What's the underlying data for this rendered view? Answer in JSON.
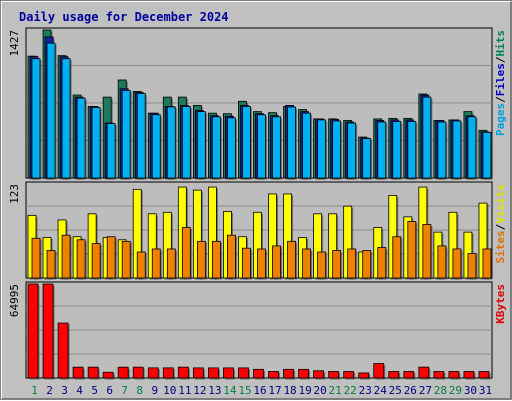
{
  "chart_data": {
    "type": "bar",
    "title": "Daily usage for December 2024",
    "categories": [
      "1",
      "2",
      "3",
      "4",
      "5",
      "6",
      "7",
      "8",
      "9",
      "10",
      "11",
      "12",
      "13",
      "14",
      "15",
      "16",
      "17",
      "18",
      "19",
      "20",
      "21",
      "22",
      "23",
      "24",
      "25",
      "26",
      "27",
      "28",
      "29",
      "30",
      "31"
    ],
    "weekend_days": [
      "1",
      "7",
      "8",
      "14",
      "15",
      "21",
      "22",
      "28",
      "29"
    ],
    "panels": [
      {
        "name": "top",
        "y_axis_max_label": "1427",
        "ylim": [
          0,
          1427
        ],
        "grid": true,
        "legend_right": [
          {
            "text": "Pages",
            "color": "#00a0e0"
          },
          {
            "text": "/",
            "color": "#000000"
          },
          {
            "text": "Files",
            "color": "#0000c0"
          },
          {
            "text": "/",
            "color": "#000000"
          },
          {
            "text": "Hits",
            "color": "#00805c"
          }
        ],
        "series": [
          {
            "name": "Hits",
            "color": "#1a7a5a",
            "values": [
              1175,
              1427,
              1180,
              800,
              690,
              780,
              945,
              835,
              625,
              780,
              780,
              700,
              625,
              620,
              740,
              640,
              630,
              690,
              660,
              570,
              570,
              555,
              395,
              570,
              575,
              575,
              810,
              555,
              560,
              640,
              460
            ]
          },
          {
            "name": "Files",
            "color": "#1820a0",
            "values": [
              1170,
              1360,
              1170,
              780,
              690,
              530,
              860,
              825,
              625,
              690,
              700,
              650,
              600,
              595,
              700,
              620,
              600,
              700,
              640,
              570,
              565,
              540,
              385,
              555,
              560,
              560,
              800,
              555,
              560,
              600,
              445
            ]
          },
          {
            "name": "Pages",
            "color": "#00b0f0",
            "values": [
              1150,
              1300,
              1150,
              770,
              680,
              525,
              845,
              815,
              610,
              685,
              690,
              640,
              590,
              580,
              690,
              610,
              590,
              685,
              625,
              560,
              550,
              530,
              380,
              540,
              545,
              545,
              780,
              540,
              550,
              590,
              440
            ]
          }
        ]
      },
      {
        "name": "middle",
        "y_axis_max_label": "123",
        "ylim": [
          0,
          123
        ],
        "grid": true,
        "legend_right": [
          {
            "text": "Sites",
            "color": "#e07000"
          },
          {
            "text": "/",
            "color": "#000000"
          },
          {
            "text": "Visits",
            "color": "#e0e000"
          }
        ],
        "series": [
          {
            "name": "Visits",
            "color": "#ffff00",
            "values": [
              82,
              53,
              76,
              54,
              84,
              53,
              50,
              116,
              84,
              86,
              119,
              115,
              119,
              87,
              54,
              86,
              110,
              110,
              53,
              84,
              84,
              94,
              34,
              66,
              108,
              80,
              119,
              60,
              86,
              60,
              98
            ]
          },
          {
            "name": "Sites",
            "color": "#f08000",
            "values": [
              52,
              36,
              56,
              50,
              45,
              54,
              48,
              34,
              38,
              38,
              66,
              48,
              48,
              56,
              39,
              38,
              42,
              48,
              38,
              34,
              36,
              38,
              36,
              40,
              54,
              74,
              70,
              42,
              38,
              32,
              38
            ]
          }
        ]
      },
      {
        "name": "bottom",
        "y_axis_max_label": "64995",
        "ylim": [
          0,
          64995
        ],
        "grid": true,
        "legend_right": [
          {
            "text": "KBytes",
            "color": "#e00000"
          }
        ],
        "series": [
          {
            "name": "KBytes",
            "color": "#ff0000",
            "values": [
              64995,
              64995,
              38000,
              7500,
              7500,
              4000,
              7500,
              7500,
              7000,
              7000,
              7500,
              7000,
              7000,
              7000,
              7000,
              6000,
              4500,
              6000,
              6000,
              5000,
              4500,
              4500,
              3500,
              10000,
              4500,
              4500,
              7500,
              4500,
              4500,
              4500,
              4500
            ]
          }
        ]
      }
    ]
  }
}
